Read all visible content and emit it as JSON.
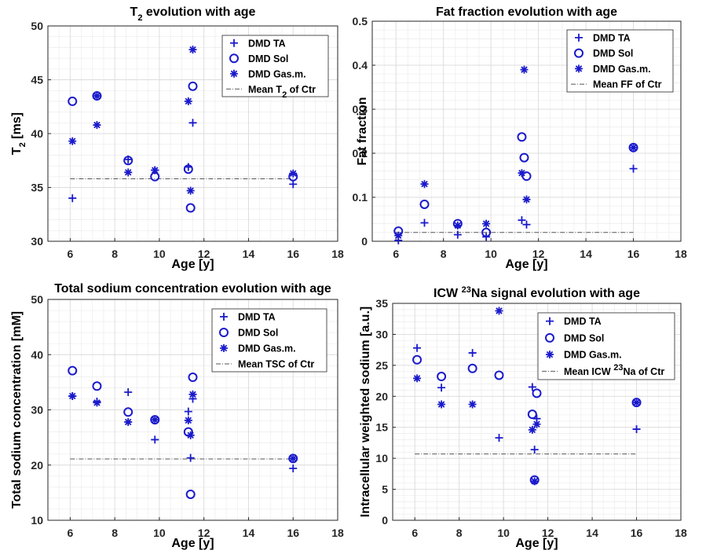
{
  "colors": {
    "series": "#1a1acc",
    "mean_line": "#555555",
    "axis": "#262626",
    "minor_grid": "#ececec",
    "major_grid": "#dcdcdc"
  },
  "chart_data": [
    {
      "type": "scatter",
      "title": "T",
      "title_sub": "2",
      "title_rest": " evolution with age",
      "xlabel": "Age [y]",
      "ylabel": "T",
      "ylabel_sub": "2",
      "ylabel_rest": " [ms]",
      "xlim": [
        5,
        18
      ],
      "ylim": [
        30,
        50
      ],
      "xticks": [
        6,
        8,
        10,
        12,
        14,
        16,
        18
      ],
      "yticks": [
        30,
        35,
        40,
        45,
        50
      ],
      "yminor": 1,
      "legend_position": "top-right",
      "series": [
        {
          "name": "DMD TA",
          "marker": "plus",
          "points": [
            [
              6.1,
              34.0
            ],
            [
              8.6,
              37.6
            ],
            [
              9.8,
              36.6
            ],
            [
              11.3,
              36.9
            ],
            [
              11.5,
              41.0
            ],
            [
              16.0,
              35.3
            ]
          ]
        },
        {
          "name": "DMD Sol",
          "marker": "circle",
          "points": [
            [
              6.1,
              43.0
            ],
            [
              7.2,
              43.5
            ],
            [
              8.6,
              37.5
            ],
            [
              9.8,
              36.0
            ],
            [
              11.3,
              36.7
            ],
            [
              11.4,
              33.1
            ],
            [
              11.5,
              44.4
            ],
            [
              16.0,
              36.0
            ]
          ]
        },
        {
          "name": "DMD Gas.m.",
          "marker": "asterisk",
          "points": [
            [
              6.1,
              39.3
            ],
            [
              7.2,
              43.5
            ],
            [
              7.2,
              40.8
            ],
            [
              8.6,
              36.4
            ],
            [
              9.8,
              36.6
            ],
            [
              11.3,
              43.0
            ],
            [
              11.4,
              34.7
            ],
            [
              11.5,
              47.8
            ],
            [
              16.0,
              36.3
            ]
          ]
        }
      ],
      "mean_line": {
        "name": "Mean T2 of Ctr",
        "label": "Mean T",
        "label_sub": "2",
        "label_rest": " of Ctr",
        "value": 35.8,
        "x_range": [
          6,
          16
        ]
      }
    },
    {
      "type": "scatter",
      "title": "Fat fraction evolution with age",
      "xlabel": "Age [y]",
      "ylabel": "Fat fraction",
      "xlim": [
        5,
        18
      ],
      "ylim": [
        0,
        0.5
      ],
      "xticks": [
        6,
        8,
        10,
        12,
        14,
        16,
        18
      ],
      "yticks": [
        0,
        0.1,
        0.2,
        0.3,
        0.4,
        0.5
      ],
      "ytick_labels": [
        "0",
        "0.1",
        "0.2",
        "0.3",
        "0.4",
        "0.5"
      ],
      "yminor": 0.02,
      "legend_position": "top-right",
      "series": [
        {
          "name": "DMD TA",
          "marker": "plus",
          "points": [
            [
              6.1,
              0.002
            ],
            [
              7.2,
              0.042
            ],
            [
              8.6,
              0.015
            ],
            [
              9.8,
              0.01
            ],
            [
              11.3,
              0.048
            ],
            [
              11.5,
              0.038
            ],
            [
              16.0,
              0.165
            ]
          ]
        },
        {
          "name": "DMD Sol",
          "marker": "circle",
          "points": [
            [
              6.1,
              0.023
            ],
            [
              7.2,
              0.084
            ],
            [
              8.6,
              0.04
            ],
            [
              9.8,
              0.02
            ],
            [
              11.3,
              0.237
            ],
            [
              11.4,
              0.19
            ],
            [
              11.5,
              0.148
            ],
            [
              16.0,
              0.213
            ]
          ]
        },
        {
          "name": "DMD Gas.m.",
          "marker": "asterisk",
          "points": [
            [
              6.1,
              0.013
            ],
            [
              7.2,
              0.13
            ],
            [
              8.6,
              0.036
            ],
            [
              9.8,
              0.04
            ],
            [
              11.3,
              0.155
            ],
            [
              11.4,
              0.39
            ],
            [
              11.5,
              0.095
            ],
            [
              16.0,
              0.213
            ]
          ]
        }
      ],
      "mean_line": {
        "name": "Mean FF of Ctr",
        "label": "Mean FF of Ctr",
        "value": 0.02,
        "x_range": [
          6,
          16
        ]
      }
    },
    {
      "type": "scatter",
      "title": "Total sodium concentration evolution with age",
      "xlabel": "Age [y]",
      "ylabel": "Total sodium concentration [mM]",
      "xlim": [
        5,
        18
      ],
      "ylim": [
        10,
        50
      ],
      "xticks": [
        6,
        8,
        10,
        12,
        14,
        16,
        18
      ],
      "yticks": [
        10,
        20,
        30,
        40,
        50
      ],
      "yminor": 2,
      "legend_position": "top-right",
      "series": [
        {
          "name": "DMD TA",
          "marker": "plus",
          "points": [
            [
              6.1,
              32.5
            ],
            [
              7.2,
              31.5
            ],
            [
              8.6,
              33.2
            ],
            [
              9.8,
              24.6
            ],
            [
              11.3,
              29.7
            ],
            [
              11.4,
              21.3
            ],
            [
              11.5,
              32.0
            ],
            [
              16.0,
              19.4
            ]
          ]
        },
        {
          "name": "DMD Sol",
          "marker": "circle",
          "points": [
            [
              6.1,
              37.1
            ],
            [
              7.2,
              34.3
            ],
            [
              8.6,
              29.6
            ],
            [
              9.8,
              28.2
            ],
            [
              11.3,
              26.0
            ],
            [
              11.4,
              14.7
            ],
            [
              11.5,
              35.9
            ],
            [
              16.0,
              21.2
            ]
          ]
        },
        {
          "name": "DMD Gas.m.",
          "marker": "asterisk",
          "points": [
            [
              6.1,
              32.5
            ],
            [
              7.2,
              31.3
            ],
            [
              8.6,
              27.8
            ],
            [
              9.8,
              28.2
            ],
            [
              11.3,
              28.1
            ],
            [
              11.4,
              25.4
            ],
            [
              11.5,
              32.8
            ],
            [
              16.0,
              21.2
            ]
          ]
        }
      ],
      "mean_line": {
        "name": "Mean TSC of Ctr",
        "label": "Mean TSC of Ctr",
        "value": 21.1,
        "x_range": [
          6,
          16
        ]
      }
    },
    {
      "type": "scatter",
      "title": "ICW ",
      "title_sup": "23",
      "title_rest": "Na signal evolution with age",
      "xlabel": "Age [y]",
      "ylabel": "Intracellular weighted sodium [a.u.]",
      "xlim": [
        5,
        18
      ],
      "ylim": [
        0,
        35
      ],
      "xticks": [
        6,
        8,
        10,
        12,
        14,
        16,
        18
      ],
      "yticks": [
        0,
        5,
        10,
        15,
        20,
        25,
        30,
        35
      ],
      "yminor": 1,
      "legend_position": "top-right",
      "series": [
        {
          "name": "DMD TA",
          "marker": "plus",
          "points": [
            [
              6.1,
              27.8
            ],
            [
              7.2,
              21.4
            ],
            [
              8.6,
              27.0
            ],
            [
              9.8,
              13.3
            ],
            [
              11.3,
              21.5
            ],
            [
              11.4,
              11.4
            ],
            [
              11.5,
              16.4
            ],
            [
              16.0,
              14.7
            ]
          ]
        },
        {
          "name": "DMD Sol",
          "marker": "circle",
          "points": [
            [
              6.1,
              25.9
            ],
            [
              7.2,
              23.2
            ],
            [
              8.6,
              24.5
            ],
            [
              9.8,
              23.4
            ],
            [
              11.3,
              17.1
            ],
            [
              11.4,
              6.5
            ],
            [
              11.5,
              20.5
            ],
            [
              16.0,
              19.0
            ]
          ]
        },
        {
          "name": "DMD Gas.m.",
          "marker": "asterisk",
          "points": [
            [
              6.1,
              22.9
            ],
            [
              7.2,
              18.7
            ],
            [
              8.6,
              18.7
            ],
            [
              9.8,
              33.8
            ],
            [
              11.3,
              14.6
            ],
            [
              11.4,
              6.3
            ],
            [
              11.5,
              15.5
            ],
            [
              16.0,
              19.0
            ]
          ]
        }
      ],
      "mean_line": {
        "name": "Mean ICW 23Na of Ctr",
        "label": "Mean ICW ",
        "label_sup": "23",
        "label_rest": "Na of Ctr",
        "value": 10.7,
        "x_range": [
          6,
          16
        ]
      }
    }
  ]
}
